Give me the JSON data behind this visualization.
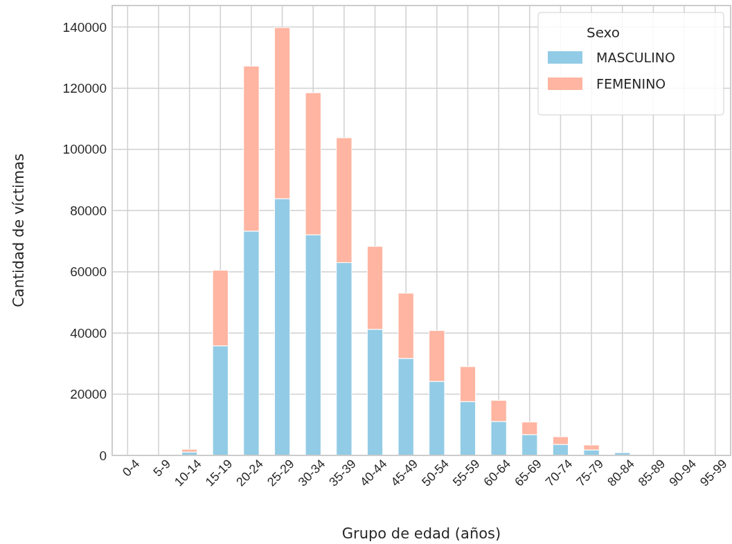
{
  "chart_data": {
    "type": "bar",
    "stacked": true,
    "xlabel": "Grupo de edad (años)",
    "ylabel": "Cantidad de víctimas",
    "legend_title": "Sexo",
    "legend": "top right",
    "grid": true,
    "categories": [
      "0-4",
      "5-9",
      "10-14",
      "15-19",
      "20-24",
      "25-29",
      "30-34",
      "35-39",
      "40-44",
      "45-49",
      "50-54",
      "55-59",
      "60-64",
      "65-69",
      "70-74",
      "75-79",
      "80-84",
      "85-89",
      "90-94",
      "95-99"
    ],
    "ylim": [
      0,
      147000
    ],
    "yticks": [
      0,
      20000,
      40000,
      60000,
      80000,
      100000,
      120000,
      140000
    ],
    "series": [
      {
        "name": "MASCULINO",
        "color": "#92cbe5",
        "values": [
          0,
          0,
          1100,
          35800,
          73300,
          83900,
          72100,
          63000,
          41200,
          31700,
          24200,
          17600,
          11100,
          6800,
          3600,
          1800,
          900,
          null,
          null,
          0
        ]
      },
      {
        "name": "FEMENINO",
        "color": "#ffb5a1",
        "values": [
          0,
          0,
          900,
          24700,
          53900,
          55900,
          46400,
          40800,
          27100,
          21300,
          16600,
          11400,
          6900,
          4100,
          2500,
          1600,
          null,
          null,
          null,
          0
        ]
      }
    ]
  }
}
